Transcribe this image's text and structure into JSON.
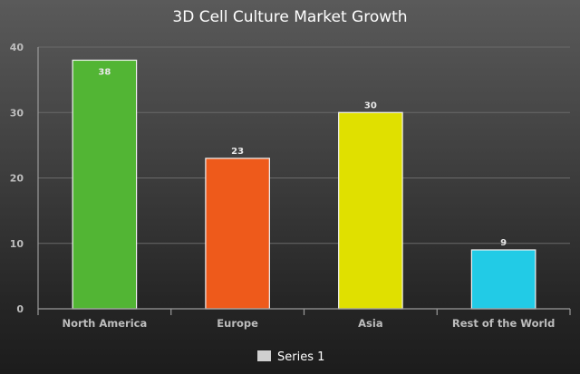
{
  "chart_data": {
    "type": "bar",
    "title": "3D Cell Culture Market Growth",
    "xlabel": "",
    "ylabel": "",
    "categories": [
      "North America",
      "Europe",
      "Asia",
      "Rest of the World"
    ],
    "series": [
      {
        "name": "Series 1",
        "values": [
          38,
          23,
          30,
          9
        ]
      }
    ],
    "bar_colors": [
      "#52b534",
      "#ee5a1b",
      "#e0e000",
      "#22cbe6"
    ],
    "ylim": [
      0,
      40
    ],
    "yticks": [
      0,
      10,
      20,
      30,
      40
    ],
    "grid": true,
    "legend": "bottom-center",
    "legend_swatch_color": "#cfcfcf",
    "data_labels": true
  }
}
